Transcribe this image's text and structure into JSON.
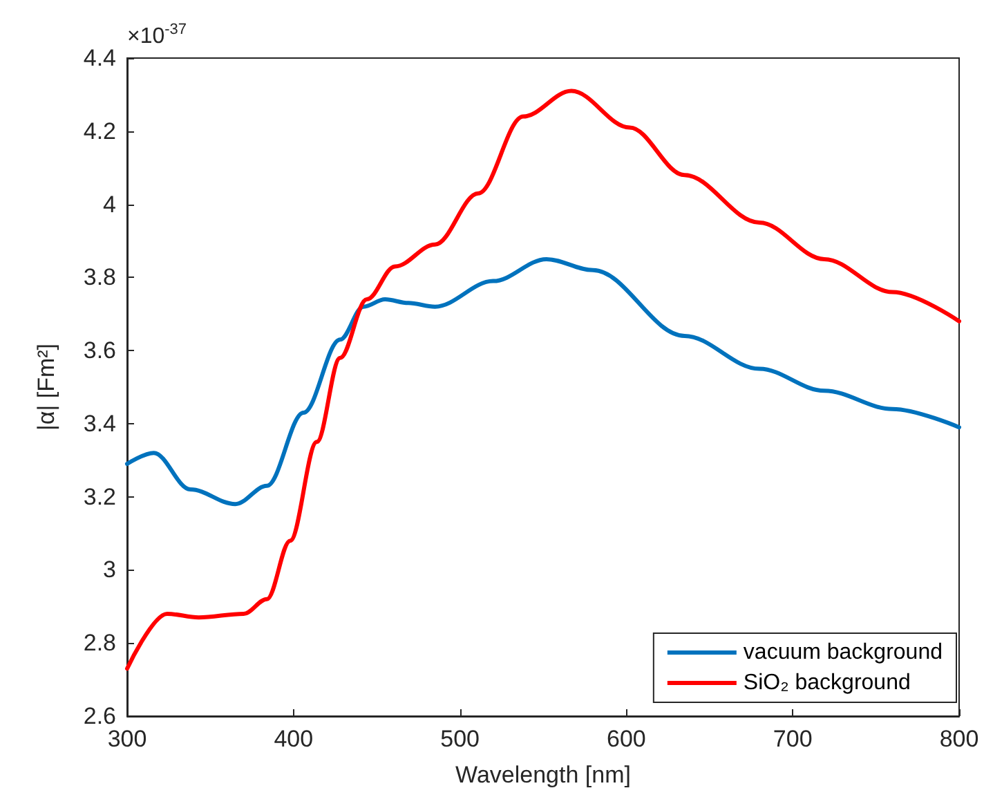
{
  "chart_data": {
    "type": "line",
    "xlabel": "Wavelength [nm]",
    "ylabel": "|α| [Fm²]",
    "annotations": [
      "×10$^{-37}$"
    ],
    "xlim": [
      300,
      800
    ],
    "xticks": [
      300,
      400,
      500,
      600,
      700,
      800
    ],
    "ylim": [
      2.6,
      4.4
    ],
    "yticks": [
      2.6,
      2.8,
      3,
      3.2,
      3.4,
      3.6,
      3.8,
      4,
      4.2,
      4.4
    ],
    "grid": false,
    "legend": "bottom right",
    "marker": "none",
    "line_style": "solid",
    "series": [
      {
        "name": "vacuum background",
        "color": "#0072bd",
        "x": [
          300,
          316,
          338,
          365,
          384,
          406,
          428,
          442,
          455,
          469,
          485,
          520,
          552,
          580,
          635,
          680,
          719,
          760,
          800
        ],
        "values": [
          3.29,
          3.32,
          3.22,
          3.18,
          3.23,
          3.43,
          3.63,
          3.72,
          3.74,
          3.73,
          3.72,
          3.79,
          3.85,
          3.82,
          3.64,
          3.55,
          3.49,
          3.44,
          3.39
        ]
      },
      {
        "name": "SiO₂ background",
        "color": "#ff0000",
        "x": [
          300,
          324,
          343,
          370,
          384,
          398,
          414,
          428,
          444,
          461,
          485,
          511,
          538,
          567,
          602,
          635,
          680,
          719,
          760,
          800
        ],
        "values": [
          2.73,
          2.88,
          2.87,
          2.88,
          2.92,
          3.08,
          3.35,
          3.58,
          3.74,
          3.83,
          3.89,
          4.03,
          4.24,
          4.31,
          4.21,
          4.08,
          3.95,
          3.85,
          3.76,
          3.68
        ]
      }
    ]
  }
}
